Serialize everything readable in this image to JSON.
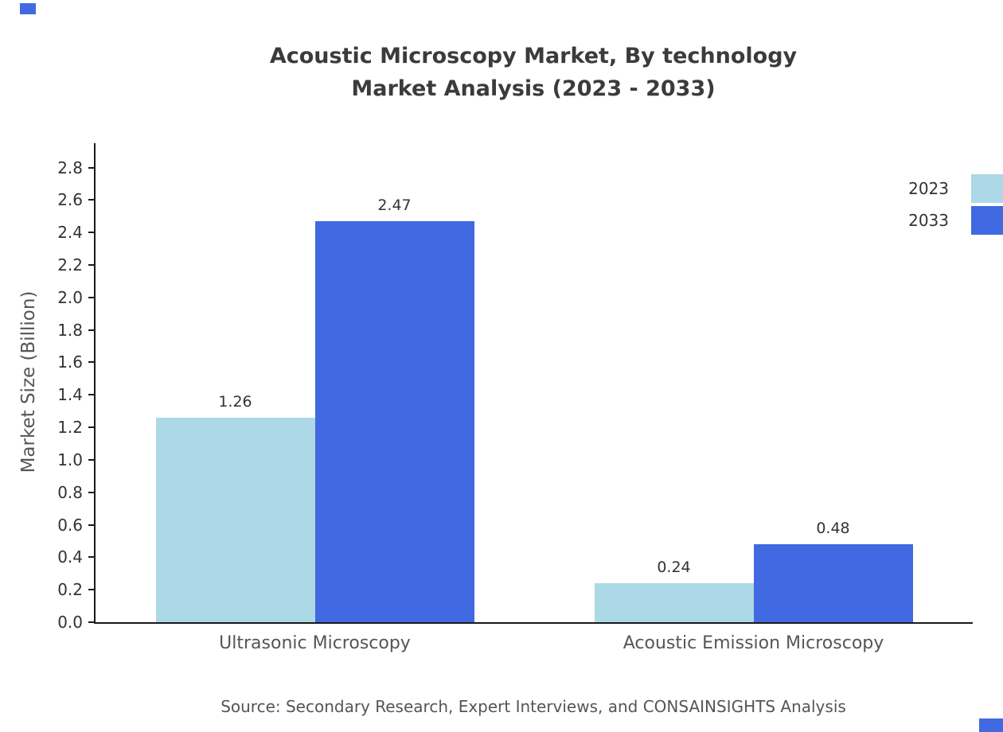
{
  "page": {
    "title_line1": "Acoustic Microscopy Market, By technology",
    "title_line2": "Market Analysis (2023 - 2033)",
    "source": "Source: Secondary Research, Expert Interviews, and CONSAINSIGHTS Analysis"
  },
  "colors": {
    "series_2023": "#add8e6",
    "series_2033": "#4169e1",
    "axis": "#1a1a1a",
    "title_text": "#3b3b3b",
    "label_text": "#555555"
  },
  "chart_data": {
    "type": "bar",
    "title": "Acoustic Microscopy Market, By technology Market Analysis (2023 - 2033)",
    "categories": [
      "Ultrasonic Microscopy",
      "Acoustic Emission Microscopy"
    ],
    "series": [
      {
        "name": "2023",
        "color": "#add8e6",
        "values": [
          1.26,
          0.24
        ]
      },
      {
        "name": "2033",
        "color": "#4169e1",
        "values": [
          2.47,
          0.48
        ]
      }
    ],
    "xlabel": "",
    "ylabel": "Market Size (Billion)",
    "ylim": [
      0,
      2.95
    ],
    "yticks": [
      0.0,
      0.2,
      0.4,
      0.6,
      0.8,
      1.0,
      1.2,
      1.4,
      1.6,
      1.8,
      2.0,
      2.2,
      2.4,
      2.6,
      2.8
    ],
    "grid": false,
    "legend_position": "top-right",
    "value_labels": [
      "1.26",
      "2.47",
      "0.24",
      "0.48"
    ]
  }
}
